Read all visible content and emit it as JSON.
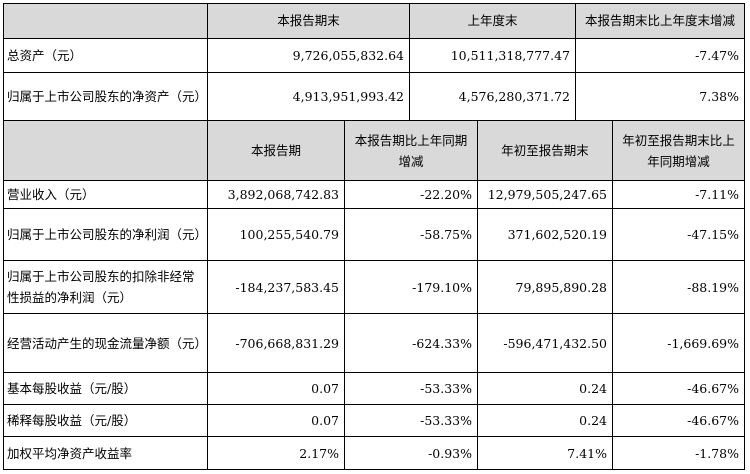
{
  "top_table": {
    "headers": [
      "本报告期末",
      "上年度末",
      "本报告期末比上年度末增减"
    ],
    "rows": [
      {
        "label": "总资产（元）",
        "values": [
          "9,726,055,832.64",
          "10,511,318,777.47",
          "-7.47%"
        ]
      },
      {
        "label": "归属于上市公司股东的净资产（元）",
        "values": [
          "4,913,951,993.42",
          "4,576,280,371.72",
          "7.38%"
        ]
      }
    ]
  },
  "bottom_table": {
    "headers": [
      "本报告期",
      "本报告期比上年同期增减",
      "年初至报告期末",
      "年初至报告期末比上年同期增减"
    ],
    "rows": [
      {
        "label": "营业收入（元）",
        "values": [
          "3,892,068,742.83",
          "-22.20%",
          "12,979,505,247.65",
          "-7.11%"
        ]
      },
      {
        "label": "归属于上市公司股东的净利润（元）",
        "values": [
          "100,255,540.79",
          "-58.75%",
          "371,602,520.19",
          "-47.15%"
        ]
      },
      {
        "label": "归属于上市公司股东的扣除非经常性损益的净利润（元）",
        "values": [
          "-184,237,583.45",
          "-179.10%",
          "79,895,890.28",
          "-88.19%"
        ]
      },
      {
        "label": "经营活动产生的现金流量净额（元）",
        "values": [
          "-706,668,831.29",
          "-624.33%",
          "-596,471,432.50",
          "-1,669.69%"
        ]
      },
      {
        "label": "基本每股收益（元/股）",
        "values": [
          "0.07",
          "-53.33%",
          "0.24",
          "-46.67%"
        ]
      },
      {
        "label": "稀释每股收益（元/股）",
        "values": [
          "0.07",
          "-53.33%",
          "0.24",
          "-46.67%"
        ]
      },
      {
        "label": "加权平均净资产收益率",
        "values": [
          "2.17%",
          "-0.93%",
          "7.41%",
          "-1.78%"
        ]
      }
    ]
  }
}
